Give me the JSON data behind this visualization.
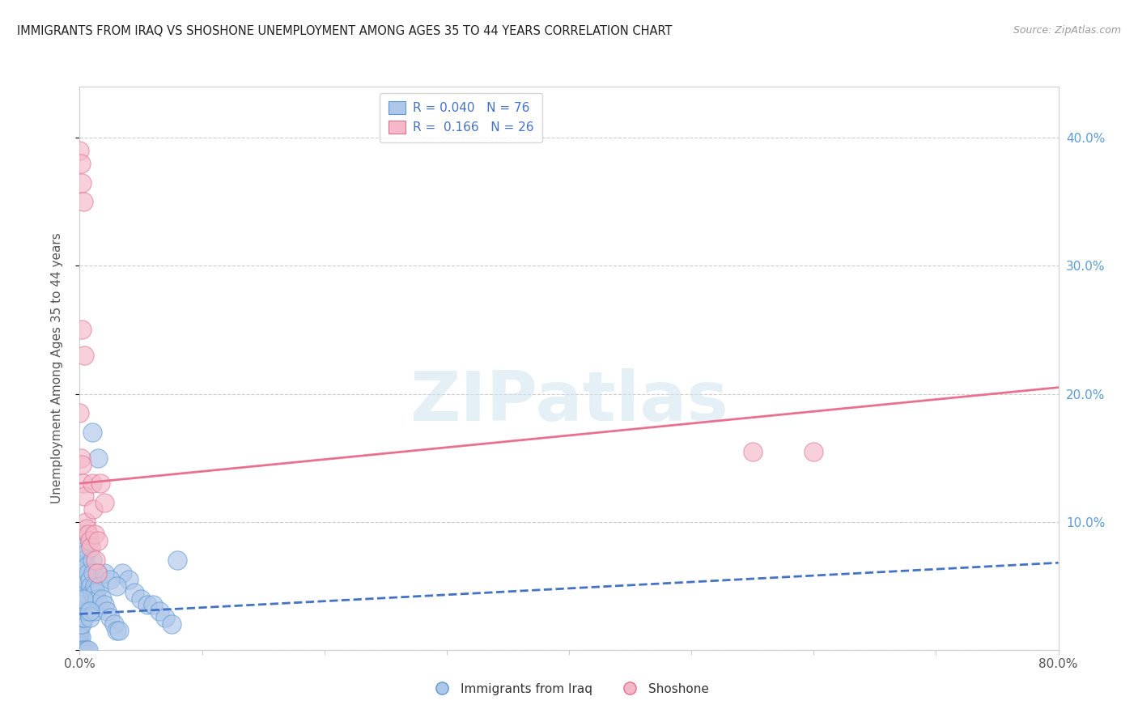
{
  "title": "IMMIGRANTS FROM IRAQ VS SHOSHONE UNEMPLOYMENT AMONG AGES 35 TO 44 YEARS CORRELATION CHART",
  "source": "Source: ZipAtlas.com",
  "ylabel": "Unemployment Among Ages 35 to 44 years",
  "ytick_labels": [
    "",
    "10.0%",
    "20.0%",
    "30.0%",
    "40.0%"
  ],
  "ytick_values": [
    0.0,
    0.1,
    0.2,
    0.3,
    0.4
  ],
  "xlim": [
    0.0,
    0.8
  ],
  "ylim": [
    0.0,
    0.44
  ],
  "legend_blue_r": "0.040",
  "legend_blue_n": "76",
  "legend_pink_r": "0.166",
  "legend_pink_n": "26",
  "legend_label_blue": "Immigrants from Iraq",
  "legend_label_pink": "Shoshone",
  "blue_fill_color": "#aec6e8",
  "pink_fill_color": "#f4b8c8",
  "blue_edge_color": "#5b9bd5",
  "pink_edge_color": "#e07090",
  "blue_line_color": "#4472c4",
  "pink_line_color": "#e87090",
  "title_color": "#222222",
  "axis_label_color": "#555555",
  "right_tick_color": "#5b9bd5",
  "watermark_text": "ZIPatlas",
  "watermark_color": "#d0e4f0",
  "blue_scatter_x": [
    0.0,
    0.0,
    0.0,
    0.0,
    0.0,
    0.0,
    0.001,
    0.001,
    0.001,
    0.001,
    0.001,
    0.001,
    0.001,
    0.002,
    0.002,
    0.002,
    0.002,
    0.002,
    0.002,
    0.002,
    0.003,
    0.003,
    0.003,
    0.003,
    0.003,
    0.004,
    0.004,
    0.004,
    0.004,
    0.005,
    0.005,
    0.005,
    0.006,
    0.006,
    0.007,
    0.007,
    0.008,
    0.008,
    0.009,
    0.01,
    0.01,
    0.011,
    0.012,
    0.012,
    0.013,
    0.014,
    0.015,
    0.016,
    0.018,
    0.02,
    0.022,
    0.025,
    0.028,
    0.03,
    0.032,
    0.035,
    0.04,
    0.045,
    0.05,
    0.055,
    0.06,
    0.065,
    0.07,
    0.075,
    0.08,
    0.01,
    0.015,
    0.02,
    0.025,
    0.03,
    0.002,
    0.004,
    0.006,
    0.007,
    0.003,
    0.008
  ],
  "blue_scatter_y": [
    0.02,
    0.015,
    0.01,
    0.008,
    0.005,
    0.003,
    0.05,
    0.045,
    0.04,
    0.035,
    0.025,
    0.02,
    0.01,
    0.08,
    0.07,
    0.06,
    0.05,
    0.04,
    0.03,
    0.02,
    0.09,
    0.07,
    0.055,
    0.04,
    0.025,
    0.08,
    0.065,
    0.045,
    0.025,
    0.075,
    0.055,
    0.03,
    0.065,
    0.04,
    0.06,
    0.03,
    0.055,
    0.025,
    0.05,
    0.07,
    0.045,
    0.06,
    0.05,
    0.03,
    0.045,
    0.04,
    0.06,
    0.05,
    0.04,
    0.035,
    0.03,
    0.025,
    0.02,
    0.015,
    0.015,
    0.06,
    0.055,
    0.045,
    0.04,
    0.035,
    0.035,
    0.03,
    0.025,
    0.02,
    0.07,
    0.17,
    0.15,
    0.06,
    0.055,
    0.05,
    0.0,
    0.0,
    0.0,
    0.0,
    0.04,
    0.03
  ],
  "pink_scatter_x": [
    0.0,
    0.001,
    0.002,
    0.003,
    0.004,
    0.005,
    0.006,
    0.007,
    0.008,
    0.009,
    0.01,
    0.011,
    0.012,
    0.013,
    0.014,
    0.015,
    0.017,
    0.02,
    0.0,
    0.001,
    0.002,
    0.003,
    0.55,
    0.6,
    0.002,
    0.004
  ],
  "pink_scatter_y": [
    0.185,
    0.15,
    0.145,
    0.13,
    0.12,
    0.1,
    0.095,
    0.09,
    0.085,
    0.08,
    0.13,
    0.11,
    0.09,
    0.07,
    0.06,
    0.085,
    0.13,
    0.115,
    0.39,
    0.38,
    0.365,
    0.35,
    0.155,
    0.155,
    0.25,
    0.23
  ],
  "blue_trend_x": [
    0.0,
    0.8
  ],
  "blue_trend_y": [
    0.028,
    0.068
  ],
  "pink_trend_x": [
    0.0,
    0.8
  ],
  "pink_trend_y": [
    0.13,
    0.205
  ],
  "background_color": "#ffffff",
  "grid_color": "#cccccc",
  "xtick_positions": [
    0.0,
    0.1,
    0.2,
    0.3,
    0.4,
    0.5,
    0.6,
    0.7,
    0.8
  ],
  "xtick_show_labels": [
    true,
    false,
    false,
    false,
    false,
    false,
    false,
    false,
    true
  ]
}
